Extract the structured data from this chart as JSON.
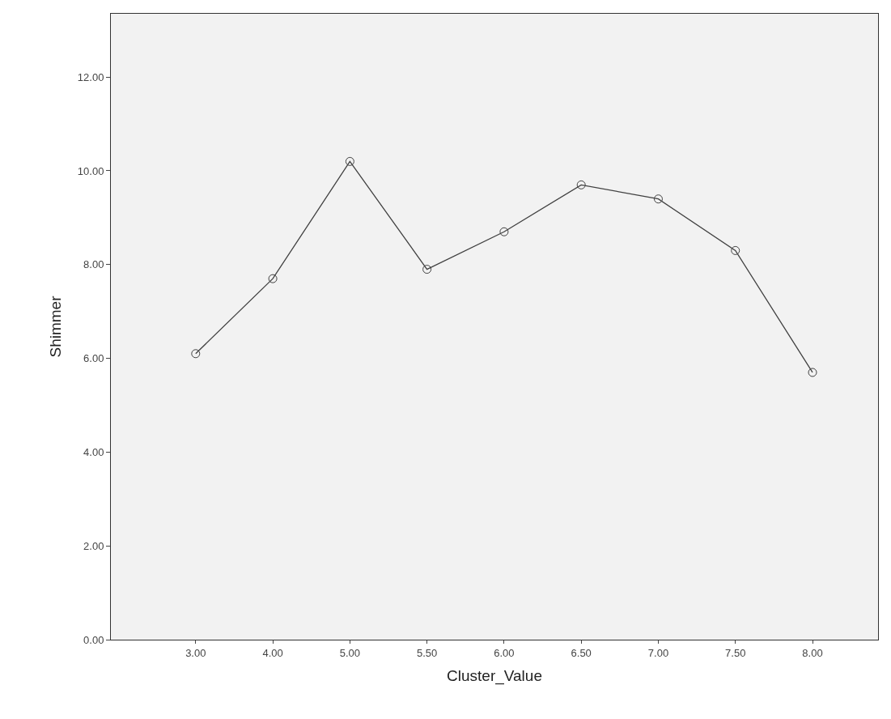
{
  "chart_data": {
    "type": "line",
    "xlabel": "Cluster_Value",
    "ylabel": "Shimmer",
    "categories": [
      "3.00",
      "4.00",
      "5.00",
      "5.50",
      "6.00",
      "6.50",
      "7.00",
      "7.50",
      "8.00"
    ],
    "series": [
      {
        "color": "#404040",
        "values": [
          6.1,
          7.7,
          10.2,
          7.9,
          8.7,
          9.7,
          9.4,
          8.3,
          5.7
        ]
      }
    ],
    "ylim": [
      0,
      13.35
    ],
    "yticks": [
      {
        "value": 0,
        "label": "0.00"
      },
      {
        "value": 2,
        "label": "2.00"
      },
      {
        "value": 4,
        "label": "4.00"
      },
      {
        "value": 6,
        "label": "6.00"
      },
      {
        "value": 8,
        "label": "8.00"
      },
      {
        "value": 10,
        "label": "10.00"
      },
      {
        "value": 12,
        "label": "12.00"
      }
    ],
    "marker": "circle",
    "line_style": "solid"
  }
}
